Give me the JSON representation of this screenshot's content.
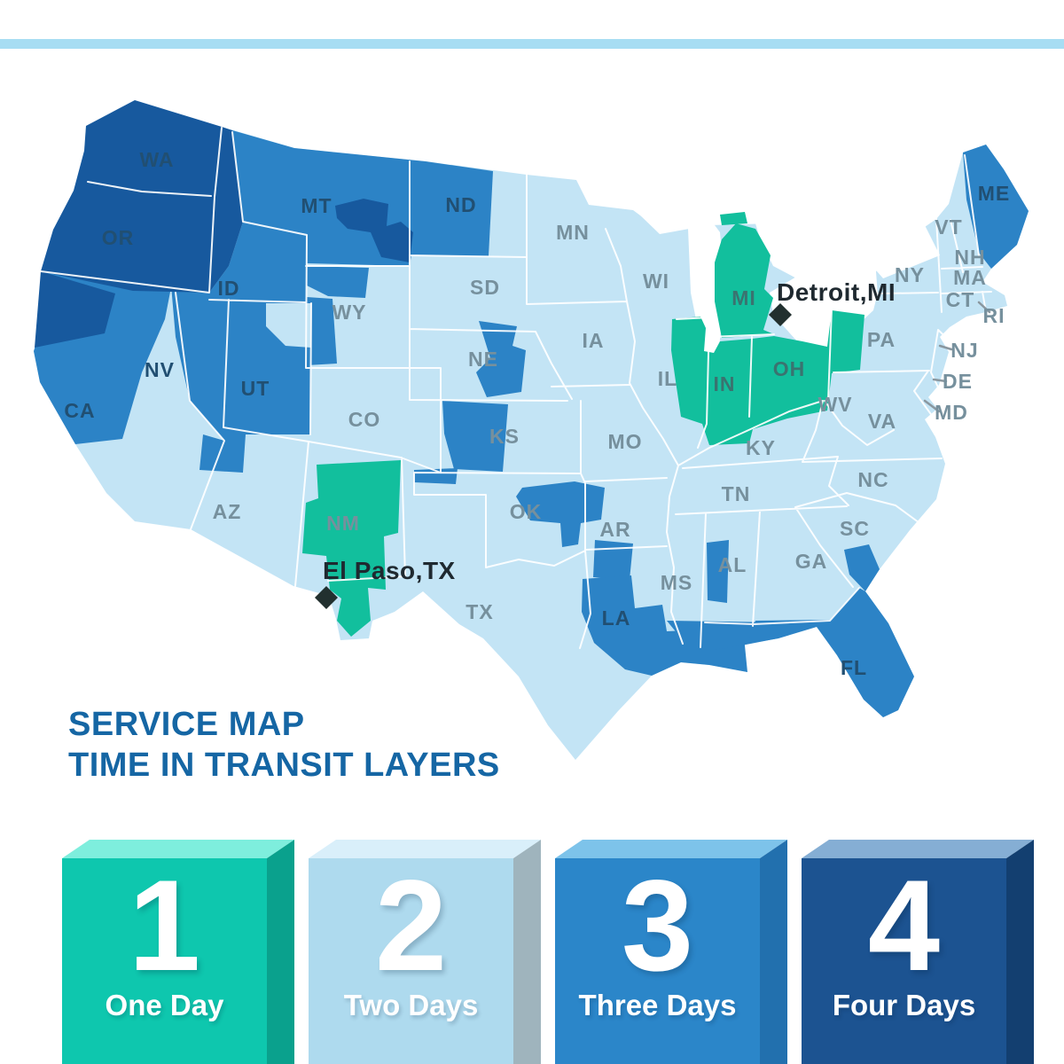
{
  "top_bar": {
    "color": "#a7ddf3"
  },
  "title": {
    "line1": "SERVICE MAP",
    "line2": "TIME IN TRANSIT LAYERS",
    "color": "#1566a4"
  },
  "map": {
    "day_colors": {
      "day1": "#12bf9d",
      "day2": "#c3e4f5",
      "day3": "#2c83c6",
      "day4": "#17599e"
    },
    "marker_color": "#22302f",
    "markers": [
      {
        "id": "detroit",
        "label": "Detroit,MI"
      },
      {
        "id": "el-paso",
        "label": "El Paso,TX"
      }
    ],
    "states": [
      {
        "abbr": "WA",
        "transit_days": 4
      },
      {
        "abbr": "OR",
        "transit_days": 4
      },
      {
        "abbr": "CA",
        "transit_days": 3
      },
      {
        "abbr": "NV",
        "transit_days": 3
      },
      {
        "abbr": "ID",
        "transit_days": 3
      },
      {
        "abbr": "MT",
        "transit_days": 3
      },
      {
        "abbr": "WY",
        "transit_days": 2
      },
      {
        "abbr": "UT",
        "transit_days": 3
      },
      {
        "abbr": "CO",
        "transit_days": 2
      },
      {
        "abbr": "AZ",
        "transit_days": 2
      },
      {
        "abbr": "NM",
        "transit_days": 1
      },
      {
        "abbr": "ND",
        "transit_days": 3
      },
      {
        "abbr": "SD",
        "transit_days": 2
      },
      {
        "abbr": "NE",
        "transit_days": 2
      },
      {
        "abbr": "KS",
        "transit_days": 2
      },
      {
        "abbr": "OK",
        "transit_days": 2
      },
      {
        "abbr": "TX",
        "transit_days": 2
      },
      {
        "abbr": "MN",
        "transit_days": 2
      },
      {
        "abbr": "IA",
        "transit_days": 2
      },
      {
        "abbr": "MO",
        "transit_days": 2
      },
      {
        "abbr": "AR",
        "transit_days": 2
      },
      {
        "abbr": "LA",
        "transit_days": 3
      },
      {
        "abbr": "WI",
        "transit_days": 2
      },
      {
        "abbr": "IL",
        "transit_days": 2
      },
      {
        "abbr": "MS",
        "transit_days": 2
      },
      {
        "abbr": "AL",
        "transit_days": 2
      },
      {
        "abbr": "MI",
        "transit_days": 1
      },
      {
        "abbr": "IN",
        "transit_days": 1
      },
      {
        "abbr": "OH",
        "transit_days": 1
      },
      {
        "abbr": "KY",
        "transit_days": 2
      },
      {
        "abbr": "TN",
        "transit_days": 2
      },
      {
        "abbr": "GA",
        "transit_days": 2
      },
      {
        "abbr": "FL",
        "transit_days": 3
      },
      {
        "abbr": "SC",
        "transit_days": 2
      },
      {
        "abbr": "NC",
        "transit_days": 2
      },
      {
        "abbr": "VA",
        "transit_days": 2
      },
      {
        "abbr": "WV",
        "transit_days": 2
      },
      {
        "abbr": "PA",
        "transit_days": 2
      },
      {
        "abbr": "NY",
        "transit_days": 2
      },
      {
        "abbr": "NJ",
        "transit_days": 2
      },
      {
        "abbr": "DE",
        "transit_days": 2
      },
      {
        "abbr": "MD",
        "transit_days": 2
      },
      {
        "abbr": "CT",
        "transit_days": 2
      },
      {
        "abbr": "RI",
        "transit_days": 2
      },
      {
        "abbr": "MA",
        "transit_days": 2
      },
      {
        "abbr": "NH",
        "transit_days": 2
      },
      {
        "abbr": "VT",
        "transit_days": 2
      },
      {
        "abbr": "ME",
        "transit_days": 3
      }
    ]
  },
  "legend": {
    "items": [
      {
        "value": "1",
        "label": "One Day",
        "front": "#0ec7ae",
        "top": "#7eeedd",
        "side": "#0aa18d"
      },
      {
        "value": "2",
        "label": "Two Days",
        "front": "#aedaee",
        "top": "#d9effa",
        "side": "#9fb4bd"
      },
      {
        "value": "3",
        "label": "Three Days",
        "front": "#2b86c9",
        "top": "#7dc3ea",
        "side": "#2270ae"
      },
      {
        "value": "4",
        "label": "Four Days",
        "front": "#1c5391",
        "top": "#85aed4",
        "side": "#133f70"
      }
    ]
  }
}
